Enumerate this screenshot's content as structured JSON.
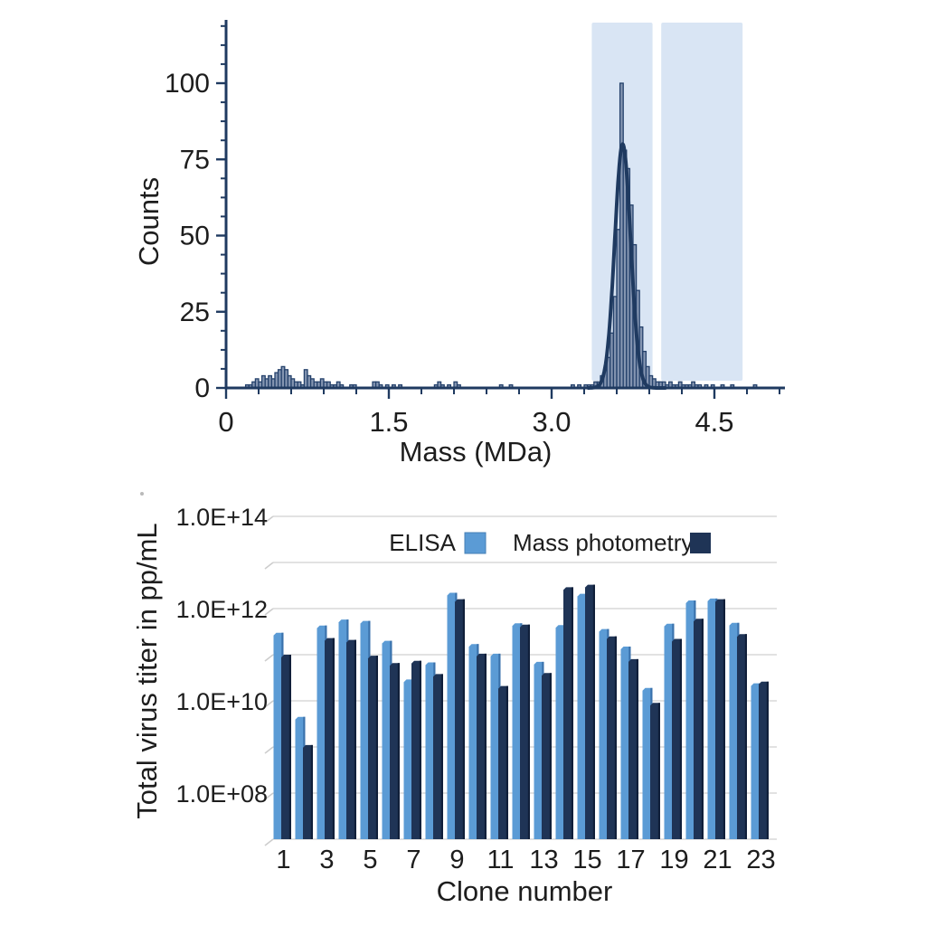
{
  "chart_data": [
    {
      "type": "histogram",
      "xlabel": "Mass (MDa)",
      "ylabel": "Counts",
      "xlim": [
        0,
        5.15
      ],
      "ylim": [
        0,
        121
      ],
      "x_tick_labels": [
        "0",
        "1.5",
        "3.0",
        "4.5"
      ],
      "x_tick_values": [
        0,
        1.5,
        3.0,
        4.5
      ],
      "x_minor_step": 0.3,
      "y_tick_labels": [
        "0",
        "25",
        "50",
        "75",
        "100"
      ],
      "y_tick_values": [
        0,
        25,
        50,
        75,
        100
      ],
      "y_minor_step": 6.25,
      "bin_width": 0.03,
      "bins": [
        [
          0.18,
          1
        ],
        [
          0.21,
          1
        ],
        [
          0.24,
          2
        ],
        [
          0.27,
          3
        ],
        [
          0.3,
          2
        ],
        [
          0.33,
          4
        ],
        [
          0.36,
          3
        ],
        [
          0.39,
          4
        ],
        [
          0.42,
          3
        ],
        [
          0.45,
          5
        ],
        [
          0.48,
          6
        ],
        [
          0.51,
          7
        ],
        [
          0.54,
          6
        ],
        [
          0.57,
          4
        ],
        [
          0.6,
          3
        ],
        [
          0.63,
          2
        ],
        [
          0.66,
          2
        ],
        [
          0.69,
          1
        ],
        [
          0.72,
          6
        ],
        [
          0.75,
          4
        ],
        [
          0.78,
          3
        ],
        [
          0.81,
          2
        ],
        [
          0.84,
          2
        ],
        [
          0.87,
          3
        ],
        [
          0.9,
          2
        ],
        [
          0.93,
          2
        ],
        [
          0.96,
          1
        ],
        [
          0.99,
          1
        ],
        [
          1.02,
          2
        ],
        [
          1.05,
          1
        ],
        [
          1.14,
          1
        ],
        [
          1.17,
          1
        ],
        [
          1.35,
          2
        ],
        [
          1.38,
          2
        ],
        [
          1.41,
          1
        ],
        [
          1.47,
          1
        ],
        [
          1.53,
          1
        ],
        [
          1.59,
          1
        ],
        [
          1.92,
          1
        ],
        [
          1.95,
          2
        ],
        [
          1.98,
          1
        ],
        [
          2.04,
          1
        ],
        [
          2.1,
          2
        ],
        [
          2.13,
          1
        ],
        [
          2.52,
          1
        ],
        [
          2.61,
          1
        ],
        [
          3.18,
          1
        ],
        [
          3.24,
          1
        ],
        [
          3.3,
          1
        ],
        [
          3.33,
          1
        ],
        [
          3.36,
          1
        ],
        [
          3.39,
          2
        ],
        [
          3.42,
          2
        ],
        [
          3.45,
          4
        ],
        [
          3.48,
          6
        ],
        [
          3.51,
          10
        ],
        [
          3.54,
          18
        ],
        [
          3.57,
          30
        ],
        [
          3.6,
          52
        ],
        [
          3.63,
          100
        ],
        [
          3.66,
          78
        ],
        [
          3.69,
          72
        ],
        [
          3.72,
          60
        ],
        [
          3.75,
          47
        ],
        [
          3.78,
          32
        ],
        [
          3.81,
          20
        ],
        [
          3.84,
          12
        ],
        [
          3.87,
          7
        ],
        [
          3.9,
          4
        ],
        [
          3.93,
          3
        ],
        [
          3.96,
          2
        ],
        [
          3.99,
          2
        ],
        [
          4.02,
          2
        ],
        [
          4.05,
          1
        ],
        [
          4.08,
          2
        ],
        [
          4.11,
          1
        ],
        [
          4.14,
          1
        ],
        [
          4.17,
          2
        ],
        [
          4.2,
          1
        ],
        [
          4.23,
          1
        ],
        [
          4.26,
          1
        ],
        [
          4.29,
          2
        ],
        [
          4.32,
          1
        ],
        [
          4.35,
          1
        ],
        [
          4.41,
          1
        ],
        [
          4.47,
          1
        ],
        [
          4.56,
          1
        ],
        [
          4.65,
          1
        ],
        [
          4.86,
          1
        ]
      ],
      "fit_curve": {
        "type": "gaussian",
        "amplitude": 80,
        "mean": 3.655,
        "sigma": 0.073
      },
      "highlight_regions": [
        [
          3.37,
          3.93
        ],
        [
          4.01,
          4.76
        ]
      ],
      "colors": {
        "axis": "#1f3a60",
        "bin_fill": "#8495b1",
        "bin_stroke": "#24416b",
        "curve": "#1f3a60",
        "highlight": "#d9e5f4"
      }
    },
    {
      "type": "bar",
      "log_scale": true,
      "xlabel": "Clone number",
      "ylabel": "Total virus titer in pp/mL",
      "ylim": [
        10000000.0,
        100000000000000.0
      ],
      "y_tick_labels": [
        "1.0E+08",
        "1.0E+10",
        "1.0E+12",
        "1.0E+14"
      ],
      "y_tick_exponents": [
        8,
        10,
        12,
        14
      ],
      "gridline_exponents": [
        7,
        8,
        9,
        10,
        11,
        12,
        13,
        14
      ],
      "x_tick_labels": [
        "1",
        "3",
        "5",
        "7",
        "9",
        "11",
        "13",
        "15",
        "17",
        "19",
        "21",
        "23"
      ],
      "x_tick_values": [
        1,
        3,
        5,
        7,
        9,
        11,
        13,
        15,
        17,
        19,
        21,
        23
      ],
      "categories": [
        1,
        2,
        3,
        4,
        5,
        6,
        7,
        8,
        9,
        10,
        11,
        12,
        13,
        14,
        15,
        16,
        17,
        18,
        19,
        20,
        21,
        22,
        23
      ],
      "series": [
        {
          "name": "ELISA",
          "color": "#5b9bd5",
          "edge_color": "#3a72ac",
          "values": [
            300000000000.0,
            4500000000.0,
            430000000000.0,
            580000000000.0,
            540000000000.0,
            200000000000.0,
            29000000000.0,
            68000000000.0,
            2200000000000.0,
            170000000000.0,
            105000000000.0,
            480000000000.0,
            70000000000.0,
            440000000000.0,
            2100000000000.0,
            360000000000.0,
            150000000000.0,
            19000000000.0,
            470000000000.0,
            1500000000000.0,
            1650000000000.0,
            490000000000.0,
            24000000000.0
          ]
        },
        {
          "name": "Mass photometry",
          "color": "#1f3456",
          "edge_color": "#101f3a",
          "values": [
            100000000000.0,
            1100000000.0,
            230000000000.0,
            210000000000.0,
            95000000000.0,
            66000000000.0,
            74000000000.0,
            38000000000.0,
            1600000000000.0,
            105000000000.0,
            21000000000.0,
            450000000000.0,
            40000000000.0,
            2900000000000.0,
            3300000000000.0,
            250000000000.0,
            80000000000.0,
            9000000000.0,
            220000000000.0,
            600000000000.0,
            1600000000000.0,
            280000000000.0,
            26000000000.0
          ]
        }
      ],
      "legend": {
        "position": "top-center"
      },
      "colors": {
        "gridline": "#d8d8d8",
        "text": "#1d1d1d"
      }
    }
  ]
}
